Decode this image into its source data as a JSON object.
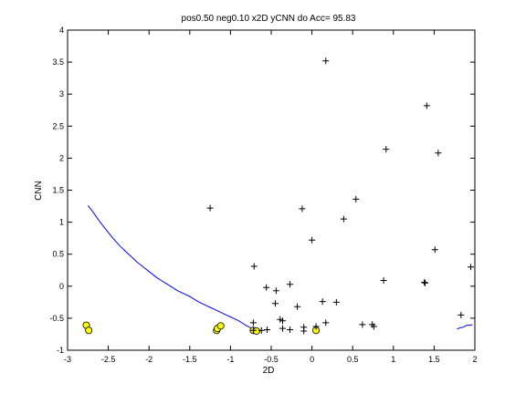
{
  "chart_data": {
    "type": "scatter",
    "title": "pos0.50 neg0.10 x2D yCNN do Acc= 95.83",
    "xlabel": "2D",
    "ylabel": "CNN",
    "xlim": [
      -3,
      2
    ],
    "ylim": [
      -1,
      4
    ],
    "xticks": [
      -3,
      -2.5,
      -2,
      -1.5,
      -1,
      -0.5,
      0,
      0.5,
      1,
      1.5,
      2
    ],
    "yticks": [
      -1,
      -0.5,
      0,
      0.5,
      1,
      1.5,
      2,
      2.5,
      3,
      3.5,
      4
    ],
    "grid": false,
    "colors": {
      "plus": "#000000",
      "circle_fill": "#ffff00",
      "circle_edge": "#000000",
      "line": "#0000ff"
    },
    "plus_points": [
      [
        0.17,
        3.52
      ],
      [
        1.41,
        2.82
      ],
      [
        0.91,
        2.14
      ],
      [
        1.55,
        2.08
      ],
      [
        0.54,
        1.36
      ],
      [
        -1.25,
        1.22
      ],
      [
        -0.12,
        1.21
      ],
      [
        0.39,
        1.05
      ],
      [
        0.0,
        0.72
      ],
      [
        1.51,
        0.57
      ],
      [
        -0.71,
        0.31
      ],
      [
        1.95,
        0.3
      ],
      [
        0.88,
        0.09
      ],
      [
        1.38,
        0.06
      ],
      [
        1.39,
        0.05
      ],
      [
        -0.56,
        -0.02
      ],
      [
        -0.27,
        0.03
      ],
      [
        -0.44,
        -0.07
      ],
      [
        0.13,
        -0.24
      ],
      [
        0.3,
        -0.25
      ],
      [
        -0.45,
        -0.27
      ],
      [
        -0.18,
        -0.32
      ],
      [
        -0.39,
        -0.52
      ],
      [
        -0.36,
        -0.54
      ],
      [
        -0.72,
        -0.57
      ],
      [
        0.17,
        -0.57
      ],
      [
        0.62,
        -0.6
      ],
      [
        0.74,
        -0.6
      ],
      [
        0.76,
        -0.63
      ],
      [
        1.83,
        -0.45
      ],
      [
        -0.62,
        -0.69
      ],
      [
        -0.55,
        -0.68
      ],
      [
        -0.36,
        -0.66
      ],
      [
        -0.27,
        -0.68
      ],
      [
        -0.1,
        -0.64
      ],
      [
        -0.1,
        -0.7
      ],
      [
        0.05,
        -0.63
      ],
      [
        -0.72,
        -0.69
      ]
    ],
    "circle_points": [
      [
        -2.77,
        -0.61
      ],
      [
        -2.74,
        -0.69
      ],
      [
        -1.17,
        -0.69
      ],
      [
        -1.16,
        -0.66
      ],
      [
        -1.12,
        -0.62
      ],
      [
        -0.72,
        -0.69
      ],
      [
        -0.68,
        -0.7
      ],
      [
        0.05,
        -0.69
      ]
    ],
    "curve": [
      [
        -2.75,
        1.26
      ],
      [
        -2.7,
        1.18
      ],
      [
        -2.65,
        1.09
      ],
      [
        -2.6,
        1.0
      ],
      [
        -2.55,
        0.92
      ],
      [
        -2.5,
        0.84
      ],
      [
        -2.45,
        0.76
      ],
      [
        -2.4,
        0.69
      ],
      [
        -2.35,
        0.62
      ],
      [
        -2.3,
        0.56
      ],
      [
        -2.25,
        0.5
      ],
      [
        -2.2,
        0.44
      ],
      [
        -2.15,
        0.38
      ],
      [
        -2.1,
        0.33
      ],
      [
        -2.05,
        0.28
      ],
      [
        -2.0,
        0.23
      ],
      [
        -1.95,
        0.18
      ],
      [
        -1.9,
        0.13
      ],
      [
        -1.85,
        0.09
      ],
      [
        -1.8,
        0.05
      ],
      [
        -1.75,
        0.01
      ],
      [
        -1.7,
        -0.03
      ],
      [
        -1.65,
        -0.07
      ],
      [
        -1.6,
        -0.1
      ],
      [
        -1.55,
        -0.13
      ],
      [
        -1.5,
        -0.16
      ],
      [
        -1.45,
        -0.2
      ],
      [
        -1.4,
        -0.24
      ],
      [
        -1.35,
        -0.27
      ],
      [
        -1.3,
        -0.3
      ],
      [
        -1.25,
        -0.33
      ],
      [
        -1.2,
        -0.36
      ],
      [
        -1.15,
        -0.39
      ],
      [
        -1.1,
        -0.42
      ],
      [
        -1.05,
        -0.45
      ],
      [
        -1.0,
        -0.48
      ],
      [
        -0.95,
        -0.51
      ],
      [
        -0.9,
        -0.54
      ],
      [
        -0.85,
        -0.58
      ],
      [
        -0.8,
        -0.62
      ],
      [
        -0.75,
        -0.65
      ],
      [
        -0.7,
        -0.67
      ],
      [
        -0.65,
        -0.69
      ]
    ],
    "curve_right": [
      [
        1.78,
        -0.67
      ],
      [
        1.82,
        -0.65
      ],
      [
        1.86,
        -0.64
      ],
      [
        1.9,
        -0.61
      ],
      [
        1.94,
        -0.61
      ],
      [
        1.97,
        -0.6
      ]
    ]
  }
}
